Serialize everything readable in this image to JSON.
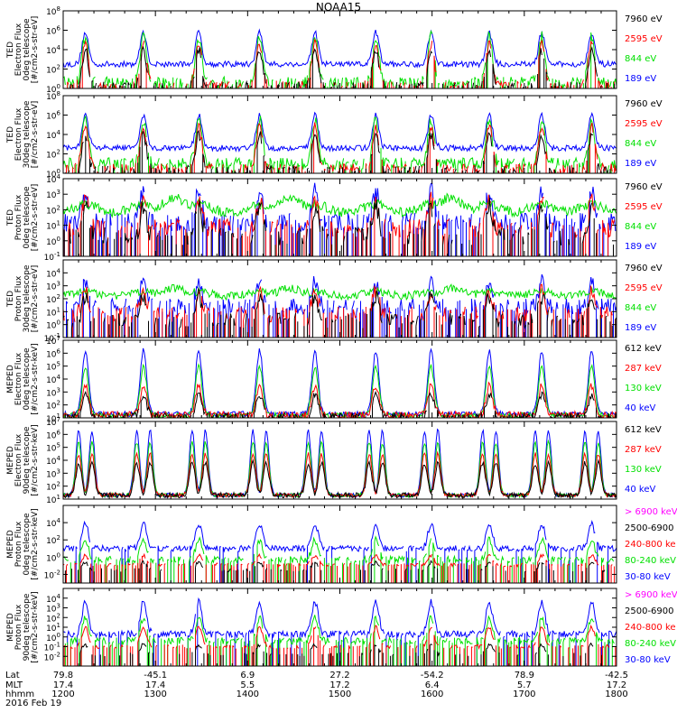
{
  "title": "NOAA15",
  "colors": {
    "black": "#000000",
    "red": "#ff0000",
    "green": "#00e000",
    "blue": "#0000ff",
    "magenta": "#ff00ff"
  },
  "footer": {
    "row_labels": [
      "Lat",
      "MLT",
      "hhmm",
      "2016 Feb 19"
    ],
    "columns": [
      {
        "lat": "79.8",
        "mlt": "17.4",
        "hhmm": "1200"
      },
      {
        "lat": "-45.1",
        "mlt": "17.4",
        "hhmm": "1300"
      },
      {
        "lat": "6.9",
        "mlt": "5.5",
        "hhmm": "1400"
      },
      {
        "lat": "27.2",
        "mlt": "17.2",
        "hhmm": "1500"
      },
      {
        "lat": "-54.2",
        "mlt": "6.4",
        "hhmm": "1600"
      },
      {
        "lat": "78.9",
        "mlt": "5.7",
        "hhmm": "1700"
      },
      {
        "lat": "-42.5",
        "mlt": "17.2",
        "hhmm": "1800"
      }
    ]
  },
  "chart_data": [
    {
      "type": "line",
      "ylabel": [
        "TED",
        "Electron Flux",
        "0deg telescope",
        "[#/cm2-s-str-eV]"
      ],
      "y_log_range": [
        0,
        8
      ],
      "y_ticks": [
        {
          "exp": 0,
          "label": "10",
          "sup": "0"
        },
        {
          "exp": 2,
          "label": "10",
          "sup": "2"
        },
        {
          "exp": 4,
          "label": "10",
          "sup": "4"
        },
        {
          "exp": 6,
          "label": "10",
          "sup": "6"
        },
        {
          "exp": 8,
          "label": "10",
          "sup": "8"
        }
      ],
      "legend": [
        {
          "name": "7960 eV",
          "color": "#000000"
        },
        {
          "name": "2595 eV",
          "color": "#ff0000"
        },
        {
          "name": "844 eV",
          "color": "#00e000"
        },
        {
          "name": "189 eV",
          "color": "#0000ff"
        }
      ],
      "series": [
        {
          "name": "189 eV",
          "color": "#0000ff",
          "base": 2.5,
          "peak": 5.8,
          "noise": 0.3,
          "dropout": 0
        },
        {
          "name": "844 eV",
          "color": "#00e000",
          "base": 0.6,
          "peak": 5.3,
          "noise": 0.6,
          "dropout": 0.3
        },
        {
          "name": "2595 eV",
          "color": "#ff0000",
          "base": 0.3,
          "peak": 4.6,
          "noise": 0.5,
          "dropout": 0.5
        },
        {
          "name": "7960 eV",
          "color": "#000000",
          "base": 0.2,
          "peak": 3.9,
          "noise": 0.5,
          "dropout": 0.6
        }
      ]
    },
    {
      "type": "line",
      "ylabel": [
        "TED",
        "Electron Flux",
        "30deg telescope",
        "[#/cm2-s-str-eV]"
      ],
      "y_log_range": [
        0,
        8
      ],
      "y_ticks": [
        {
          "exp": 0,
          "label": "10",
          "sup": "0"
        },
        {
          "exp": 2,
          "label": "10",
          "sup": "2"
        },
        {
          "exp": 4,
          "label": "10",
          "sup": "4"
        },
        {
          "exp": 6,
          "label": "10",
          "sup": "6"
        },
        {
          "exp": 8,
          "label": "10",
          "sup": "8"
        }
      ],
      "legend": [
        {
          "name": "7960 eV",
          "color": "#000000"
        },
        {
          "name": "2595 eV",
          "color": "#ff0000"
        },
        {
          "name": "844 eV",
          "color": "#00e000"
        },
        {
          "name": "189 eV",
          "color": "#0000ff"
        }
      ],
      "series": [
        {
          "name": "189 eV",
          "color": "#0000ff",
          "base": 2.6,
          "peak": 6.0,
          "noise": 0.3,
          "dropout": 0
        },
        {
          "name": "844 eV",
          "color": "#00e000",
          "base": 1.0,
          "peak": 5.5,
          "noise": 0.6,
          "dropout": 0.2
        },
        {
          "name": "2595 eV",
          "color": "#ff0000",
          "base": 0.5,
          "peak": 4.8,
          "noise": 0.5,
          "dropout": 0.4
        },
        {
          "name": "7960 eV",
          "color": "#000000",
          "base": 0.3,
          "peak": 4.0,
          "noise": 0.5,
          "dropout": 0.6
        }
      ]
    },
    {
      "type": "line",
      "ylabel": [
        "TED",
        "Proton Flux",
        "0deg telescope",
        "[#/cm2-s-str-eV]"
      ],
      "y_log_range": [
        -1,
        4
      ],
      "y_ticks": [
        {
          "exp": -1,
          "label": "10",
          "sup": "-1"
        },
        {
          "exp": 0,
          "label": "10",
          "sup": "0"
        },
        {
          "exp": 1,
          "label": "10",
          "sup": "1"
        },
        {
          "exp": 2,
          "label": "10",
          "sup": "2"
        },
        {
          "exp": 3,
          "label": "10",
          "sup": "3"
        },
        {
          "exp": 4,
          "label": "10",
          "sup": "4"
        }
      ],
      "legend": [
        {
          "name": "7960 eV",
          "color": "#000000"
        },
        {
          "name": "2595 eV",
          "color": "#ff0000"
        },
        {
          "name": "844 eV",
          "color": "#00e000"
        },
        {
          "name": "189 eV",
          "color": "#0000ff"
        }
      ],
      "series": [
        {
          "name": "189 eV",
          "color": "#0000ff",
          "base": 1.2,
          "peak": 3.2,
          "noise": 0.6,
          "dropout": 0.4,
          "style": "proton"
        },
        {
          "name": "844 eV",
          "color": "#00e000",
          "base": 1.8,
          "peak": 2.8,
          "noise": 0.3,
          "dropout": 0,
          "style": "proton-broad"
        },
        {
          "name": "2595 eV",
          "color": "#ff0000",
          "base": 0.8,
          "peak": 2.6,
          "noise": 0.6,
          "dropout": 0.5,
          "style": "proton"
        },
        {
          "name": "7960 eV",
          "color": "#000000",
          "base": 0.3,
          "peak": 2.2,
          "noise": 0.6,
          "dropout": 0.6,
          "style": "proton"
        }
      ]
    },
    {
      "type": "line",
      "ylabel": [
        "TED",
        "Proton Flux",
        "30deg telescope",
        "[#/cm2-s-str-eV]"
      ],
      "y_log_range": [
        -1,
        5
      ],
      "y_ticks": [
        {
          "exp": -1,
          "label": "10",
          "sup": "-1"
        },
        {
          "exp": 0,
          "label": "10",
          "sup": "0"
        },
        {
          "exp": 1,
          "label": "10",
          "sup": "1"
        },
        {
          "exp": 2,
          "label": "10",
          "sup": "2"
        },
        {
          "exp": 3,
          "label": "10",
          "sup": "3"
        },
        {
          "exp": 4,
          "label": "10",
          "sup": "4"
        }
      ],
      "legend": [
        {
          "name": "7960 eV",
          "color": "#000000"
        },
        {
          "name": "2595 eV",
          "color": "#ff0000"
        },
        {
          "name": "844 eV",
          "color": "#00e000"
        },
        {
          "name": "189 eV",
          "color": "#0000ff"
        }
      ],
      "series": [
        {
          "name": "189 eV",
          "color": "#0000ff",
          "base": 1.4,
          "peak": 3.3,
          "noise": 0.6,
          "dropout": 0.4,
          "style": "proton"
        },
        {
          "name": "844 eV",
          "color": "#00e000",
          "base": 2.2,
          "peak": 2.8,
          "noise": 0.3,
          "dropout": 0,
          "style": "proton-broad"
        },
        {
          "name": "2595 eV",
          "color": "#ff0000",
          "base": 0.8,
          "peak": 2.6,
          "noise": 0.6,
          "dropout": 0.5,
          "style": "proton"
        },
        {
          "name": "7960 eV",
          "color": "#000000",
          "base": 0.3,
          "peak": 2.2,
          "noise": 0.6,
          "dropout": 0.6,
          "style": "proton"
        }
      ]
    },
    {
      "type": "line",
      "ylabel": [
        "MEPED",
        "Electron Flux",
        "0deg telescope",
        "[#/cm2-s-str-keV]"
      ],
      "y_log_range": [
        1,
        7
      ],
      "y_ticks": [
        {
          "exp": 1,
          "label": "10",
          "sup": "1"
        },
        {
          "exp": 2,
          "label": "10",
          "sup": "2"
        },
        {
          "exp": 3,
          "label": "10",
          "sup": "3"
        },
        {
          "exp": 4,
          "label": "10",
          "sup": "4"
        },
        {
          "exp": 5,
          "label": "10",
          "sup": "5"
        },
        {
          "exp": 6,
          "label": "10",
          "sup": "6"
        },
        {
          "exp": 7,
          "label": "10",
          "sup": "7"
        }
      ],
      "legend": [
        {
          "name": "612 keV",
          "color": "#000000"
        },
        {
          "name": "287 keV",
          "color": "#ff0000"
        },
        {
          "name": "130 keV",
          "color": "#00e000"
        },
        {
          "name": "40 keV",
          "color": "#0000ff"
        }
      ],
      "series": [
        {
          "name": "40 keV",
          "color": "#0000ff",
          "base": 1.3,
          "peak": 6.2,
          "noise": 0.2,
          "dropout": 0,
          "style": "meped"
        },
        {
          "name": "130 keV",
          "color": "#00e000",
          "base": 1.2,
          "peak": 5.0,
          "noise": 0.2,
          "dropout": 0,
          "style": "meped"
        },
        {
          "name": "287 keV",
          "color": "#ff0000",
          "base": 1.2,
          "peak": 3.5,
          "noise": 0.3,
          "dropout": 0,
          "style": "meped"
        },
        {
          "name": "612 keV",
          "color": "#000000",
          "base": 1.1,
          "peak": 2.8,
          "noise": 0.3,
          "dropout": 0.3,
          "style": "meped"
        }
      ]
    },
    {
      "type": "line",
      "ylabel": [
        "MEPED",
        "Electron Flux",
        "90deg telescope",
        "[#/cm2-s-str-keV]"
      ],
      "y_log_range": [
        1,
        7
      ],
      "y_ticks": [
        {
          "exp": 1,
          "label": "10",
          "sup": "1"
        },
        {
          "exp": 2,
          "label": "10",
          "sup": "2"
        },
        {
          "exp": 3,
          "label": "10",
          "sup": "3"
        },
        {
          "exp": 4,
          "label": "10",
          "sup": "4"
        },
        {
          "exp": 5,
          "label": "10",
          "sup": "5"
        },
        {
          "exp": 6,
          "label": "10",
          "sup": "6"
        },
        {
          "exp": 7,
          "label": "10",
          "sup": "7"
        }
      ],
      "legend": [
        {
          "name": "612 keV",
          "color": "#000000"
        },
        {
          "name": "287 keV",
          "color": "#ff0000"
        },
        {
          "name": "130 keV",
          "color": "#00e000"
        },
        {
          "name": "40 keV",
          "color": "#0000ff"
        }
      ],
      "series": [
        {
          "name": "40 keV",
          "color": "#0000ff",
          "base": 1.3,
          "peak": 6.3,
          "noise": 0.15,
          "dropout": 0,
          "style": "meped90"
        },
        {
          "name": "130 keV",
          "color": "#00e000",
          "base": 1.3,
          "peak": 5.4,
          "noise": 0.15,
          "dropout": 0,
          "style": "meped90"
        },
        {
          "name": "287 keV",
          "color": "#ff0000",
          "base": 1.3,
          "peak": 4.5,
          "noise": 0.15,
          "dropout": 0,
          "style": "meped90"
        },
        {
          "name": "612 keV",
          "color": "#000000",
          "base": 1.3,
          "peak": 3.8,
          "noise": 0.2,
          "dropout": 0,
          "style": "meped90"
        }
      ]
    },
    {
      "type": "line",
      "ylabel": [
        "MEPED",
        "Proton Flux",
        "0deg telescope",
        "[#/cm2-s-str-keV]"
      ],
      "y_log_range": [
        -3,
        6
      ],
      "y_ticks": [
        {
          "exp": -2,
          "label": "10",
          "sup": "-2"
        },
        {
          "exp": 0,
          "label": "10",
          "sup": "0"
        },
        {
          "exp": 2,
          "label": "10",
          "sup": "2"
        },
        {
          "exp": 4,
          "label": "10",
          "sup": "4"
        }
      ],
      "legend": [
        {
          "name": "> 6900 keV",
          "color": "#ff00ff"
        },
        {
          "name": "2500-6900",
          "color": "#000000"
        },
        {
          "name": "240-800 ke",
          "color": "#ff0000"
        },
        {
          "name": "80-240 keV",
          "color": "#00e000"
        },
        {
          "name": "30-80 keV",
          "color": "#0000ff"
        }
      ],
      "series": [
        {
          "name": "30-80 keV",
          "color": "#0000ff",
          "base": 1.0,
          "peak": 3.9,
          "noise": 0.35,
          "dropout": 0.1,
          "style": "mepedp"
        },
        {
          "name": "80-240 keV",
          "color": "#00e000",
          "base": -0.3,
          "peak": 2.0,
          "noise": 0.4,
          "dropout": 0.3,
          "style": "mepedp"
        },
        {
          "name": "240-800 ke",
          "color": "#ff0000",
          "base": -0.9,
          "peak": 0.2,
          "noise": 0.2,
          "dropout": 0.5,
          "style": "mepedp"
        },
        {
          "name": "2500-6900",
          "color": "#000000",
          "base": -1.5,
          "peak": -0.6,
          "noise": 0.2,
          "dropout": 0.85,
          "style": "mepedp"
        }
      ]
    },
    {
      "type": "line",
      "ylabel": [
        "MEPED",
        "Proton Flux",
        "90deg telescope",
        "[#/cm2-s-str-keV]"
      ],
      "y_log_range": [
        -3,
        5
      ],
      "y_ticks": [
        {
          "exp": -2,
          "label": "10",
          "sup": "-2"
        },
        {
          "exp": -1,
          "label": "10",
          "sup": "-1"
        },
        {
          "exp": 0,
          "label": "10",
          "sup": "0"
        },
        {
          "exp": 1,
          "label": "10",
          "sup": "1"
        },
        {
          "exp": 2,
          "label": "10",
          "sup": "2"
        },
        {
          "exp": 3,
          "label": "10",
          "sup": "3"
        },
        {
          "exp": 4,
          "label": "10",
          "sup": "4"
        }
      ],
      "legend": [
        {
          "name": "> 6900 keV",
          "color": "#ff00ff"
        },
        {
          "name": "2500-6900",
          "color": "#000000"
        },
        {
          "name": "240-800 ke",
          "color": "#ff0000"
        },
        {
          "name": "80-240 keV",
          "color": "#00e000"
        },
        {
          "name": "30-80 keV",
          "color": "#0000ff"
        }
      ],
      "series": [
        {
          "name": "30-80 keV",
          "color": "#0000ff",
          "base": 0.3,
          "peak": 3.6,
          "noise": 0.35,
          "dropout": 0.1,
          "style": "mepedp"
        },
        {
          "name": "80-240 keV",
          "color": "#00e000",
          "base": -0.4,
          "peak": 2.0,
          "noise": 0.35,
          "dropout": 0.3,
          "style": "mepedp"
        },
        {
          "name": "240-800 ke",
          "color": "#ff0000",
          "base": -1.0,
          "peak": 1.0,
          "noise": 0.2,
          "dropout": 0.5,
          "style": "mepedp"
        },
        {
          "name": "2500-6900",
          "color": "#000000",
          "base": -1.8,
          "peak": -0.8,
          "noise": 0.2,
          "dropout": 0.85,
          "style": "mepedp"
        }
      ]
    }
  ],
  "x_axis": {
    "start_hhmm": "1200",
    "end_hhmm": "1800",
    "tick_every_minutes": 10,
    "major_every_minutes": 60
  }
}
